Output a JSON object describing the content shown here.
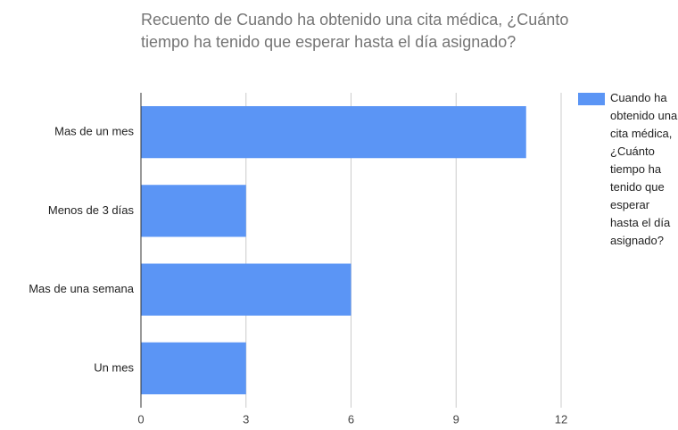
{
  "chart_data": {
    "type": "bar",
    "orientation": "horizontal",
    "title": "Recuento de Cuando ha obtenido una cita médica, ¿Cuánto tiempo ha tenido que esperar hasta el día asignado?",
    "categories": [
      "Mas de un mes",
      "Menos de 3 días",
      "Mas de una semana",
      "Un mes"
    ],
    "series": [
      {
        "name": "Cuando ha obtenido una cita médica, ¿Cuánto tiempo ha tenido que esperar hasta el día asignado?",
        "color": "#5b95f5",
        "values": [
          11,
          3,
          6,
          3
        ]
      }
    ],
    "xlim": [
      0,
      12
    ],
    "xticks": [
      0,
      3,
      6,
      9,
      12
    ],
    "grid": true,
    "legend": "right"
  }
}
